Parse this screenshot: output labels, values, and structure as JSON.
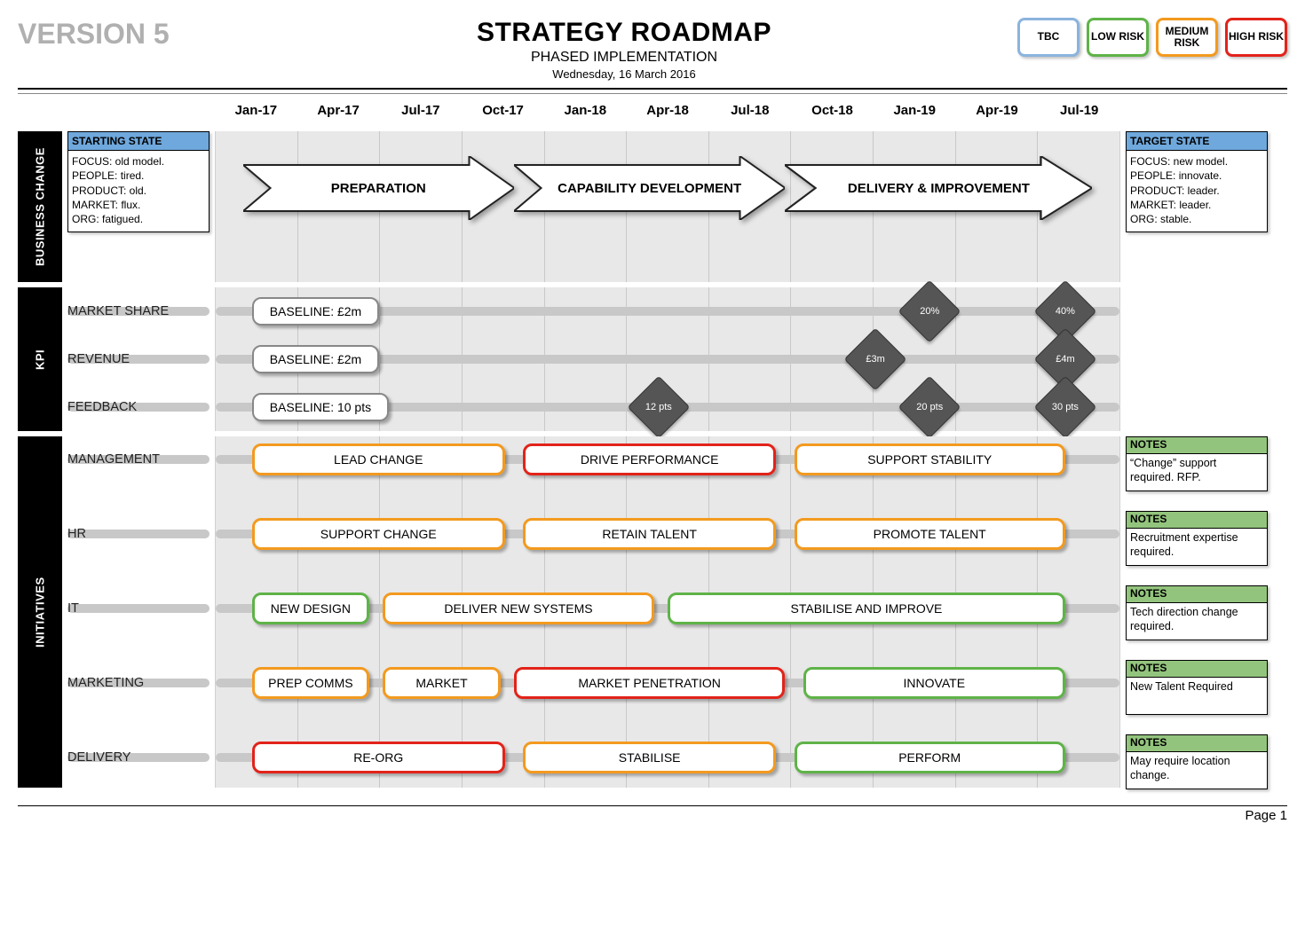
{
  "meta": {
    "version_label": "VERSION 5",
    "title": "STRATEGY ROADMAP",
    "subtitle": "PHASED IMPLEMENTATION",
    "date": "Wednesday, 16 March 2016",
    "page_label": "Page 1"
  },
  "legend": {
    "items": [
      {
        "label": "TBC",
        "color": "#8ab4dd"
      },
      {
        "label": "LOW RISK",
        "color": "#5fb348"
      },
      {
        "label": "MEDIUM RISK",
        "color": "#f39a1f"
      },
      {
        "label": "HIGH RISK",
        "color": "#e2231a"
      }
    ]
  },
  "colors": {
    "grid_bg": "#e8e8e8",
    "gridline": "#c8c8c8",
    "barline": "#c8c8c8",
    "section_tab_bg": "#000000",
    "section_tab_fg": "#ffffff",
    "state_header_bg": "#6fa8dc",
    "note_header_bg": "#93c47d",
    "diamond_fill": "#555555",
    "baseline_border": "#888888",
    "risk": {
      "tbc": "#8ab4dd",
      "low": "#5fb348",
      "medium": "#f39a1f",
      "high": "#e2231a"
    }
  },
  "timeline": {
    "columns": [
      "Jan-17",
      "Apr-17",
      "Jul-17",
      "Oct-17",
      "Jan-18",
      "Apr-18",
      "Jul-18",
      "Oct-18",
      "Jan-19",
      "Apr-19",
      "Jul-19"
    ],
    "col_count": 11
  },
  "sections": {
    "business_change": {
      "tab": "BUSINESS CHANGE",
      "starting_state": {
        "header": "STARTING STATE",
        "body": "FOCUS: old model.\nPEOPLE: tired.\nPRODUCT: old.\nMARKET: flux.\nORG: fatigued."
      },
      "target_state": {
        "header": "TARGET STATE",
        "body": "FOCUS: new  model.\nPEOPLE: innovate.\nPRODUCT: leader.\nMARKET: leader.\nORG: stable."
      },
      "phases": [
        {
          "label": "PREPARATION",
          "start_pct": 3,
          "width_pct": 30
        },
        {
          "label": "CAPABILITY DEVELOPMENT",
          "start_pct": 33,
          "width_pct": 30
        },
        {
          "label": "DELIVERY & IMPROVEMENT",
          "start_pct": 63,
          "width_pct": 34
        }
      ]
    },
    "kpi": {
      "tab": "KPI",
      "rows": [
        {
          "label": "MARKET SHARE",
          "baseline": "BASELINE: £2m",
          "baseline_left_pct": 4,
          "milestones": [
            {
              "text": "20%",
              "pos_pct": 79
            },
            {
              "text": "40%",
              "pos_pct": 94
            }
          ]
        },
        {
          "label": "REVENUE",
          "baseline": "BASELINE: £2m",
          "baseline_left_pct": 4,
          "milestones": [
            {
              "text": "£3m",
              "pos_pct": 73
            },
            {
              "text": "£4m",
              "pos_pct": 94
            }
          ]
        },
        {
          "label": "FEEDBACK",
          "baseline": "BASELINE: 10 pts",
          "baseline_left_pct": 4,
          "milestones": [
            {
              "text": "12 pts",
              "pos_pct": 49
            },
            {
              "text": "20 pts",
              "pos_pct": 79
            },
            {
              "text": "30 pts",
              "pos_pct": 94
            }
          ]
        }
      ]
    },
    "initiatives": {
      "tab": "INITIATIVES",
      "rows": [
        {
          "label": "MANAGEMENT",
          "note": "“Change” support required. RFP.",
          "bars": [
            {
              "text": "LEAD CHANGE",
              "risk": "medium",
              "start_pct": 4,
              "width_pct": 28
            },
            {
              "text": "DRIVE PERFORMANCE",
              "risk": "high",
              "start_pct": 34,
              "width_pct": 28
            },
            {
              "text": "SUPPORT STABILITY",
              "risk": "medium",
              "start_pct": 64,
              "width_pct": 30
            }
          ]
        },
        {
          "label": "HR",
          "note": "Recruitment expertise required.",
          "bars": [
            {
              "text": "SUPPORT CHANGE",
              "risk": "medium",
              "start_pct": 4,
              "width_pct": 28
            },
            {
              "text": "RETAIN TALENT",
              "risk": "medium",
              "start_pct": 34,
              "width_pct": 28
            },
            {
              "text": "PROMOTE TALENT",
              "risk": "medium",
              "start_pct": 64,
              "width_pct": 30
            }
          ]
        },
        {
          "label": "IT",
          "note": "Tech direction change required.",
          "bars": [
            {
              "text": "NEW DESIGN",
              "risk": "low",
              "start_pct": 4,
              "width_pct": 13
            },
            {
              "text": "DELIVER NEW SYSTEMS",
              "risk": "medium",
              "start_pct": 18.5,
              "width_pct": 30
            },
            {
              "text": "STABILISE AND IMPROVE",
              "risk": "low",
              "start_pct": 50,
              "width_pct": 44
            }
          ]
        },
        {
          "label": "MARKETING",
          "note": "New Talent Required",
          "bars": [
            {
              "text": "PREP COMMS",
              "risk": "medium",
              "start_pct": 4,
              "width_pct": 13
            },
            {
              "text": "MARKET",
              "risk": "medium",
              "start_pct": 18.5,
              "width_pct": 13
            },
            {
              "text": "MARKET PENETRATION",
              "risk": "high",
              "start_pct": 33,
              "width_pct": 30
            },
            {
              "text": "INNOVATE",
              "risk": "low",
              "start_pct": 65,
              "width_pct": 29
            }
          ]
        },
        {
          "label": "DELIVERY",
          "note": "May require location change.",
          "bars": [
            {
              "text": "RE-ORG",
              "risk": "high",
              "start_pct": 4,
              "width_pct": 28
            },
            {
              "text": "STABILISE",
              "risk": "medium",
              "start_pct": 34,
              "width_pct": 28
            },
            {
              "text": "PERFORM",
              "risk": "low",
              "start_pct": 64,
              "width_pct": 30
            }
          ]
        }
      ],
      "note_header": "NOTES"
    }
  }
}
